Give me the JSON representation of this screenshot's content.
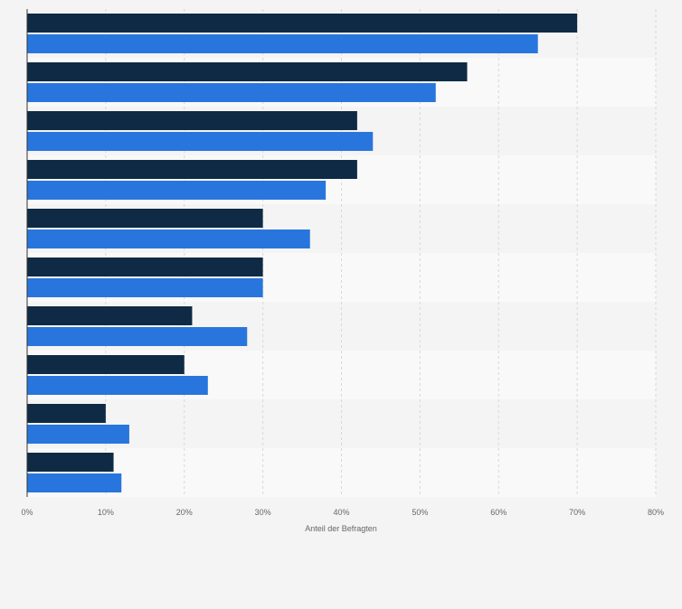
{
  "chart_data": {
    "type": "bar",
    "orientation": "horizontal",
    "categories": [
      "",
      "",
      "",
      "",
      "",
      "",
      "",
      "",
      "",
      ""
    ],
    "series": [
      {
        "color": "#0f2a44",
        "values": [
          70,
          56,
          42,
          42,
          30,
          30,
          21,
          20,
          10,
          11
        ]
      },
      {
        "color": "#2876dd",
        "values": [
          65,
          52,
          44,
          38,
          36,
          30,
          28,
          23,
          13,
          12
        ]
      }
    ],
    "xlim": [
      0,
      80
    ],
    "x_ticks": [
      "0%",
      "10%",
      "20%",
      "30%",
      "40%",
      "50%",
      "60%",
      "70%",
      "80%"
    ],
    "xlabel": "Anteil der Befragten",
    "grid": true,
    "legend": "none"
  }
}
